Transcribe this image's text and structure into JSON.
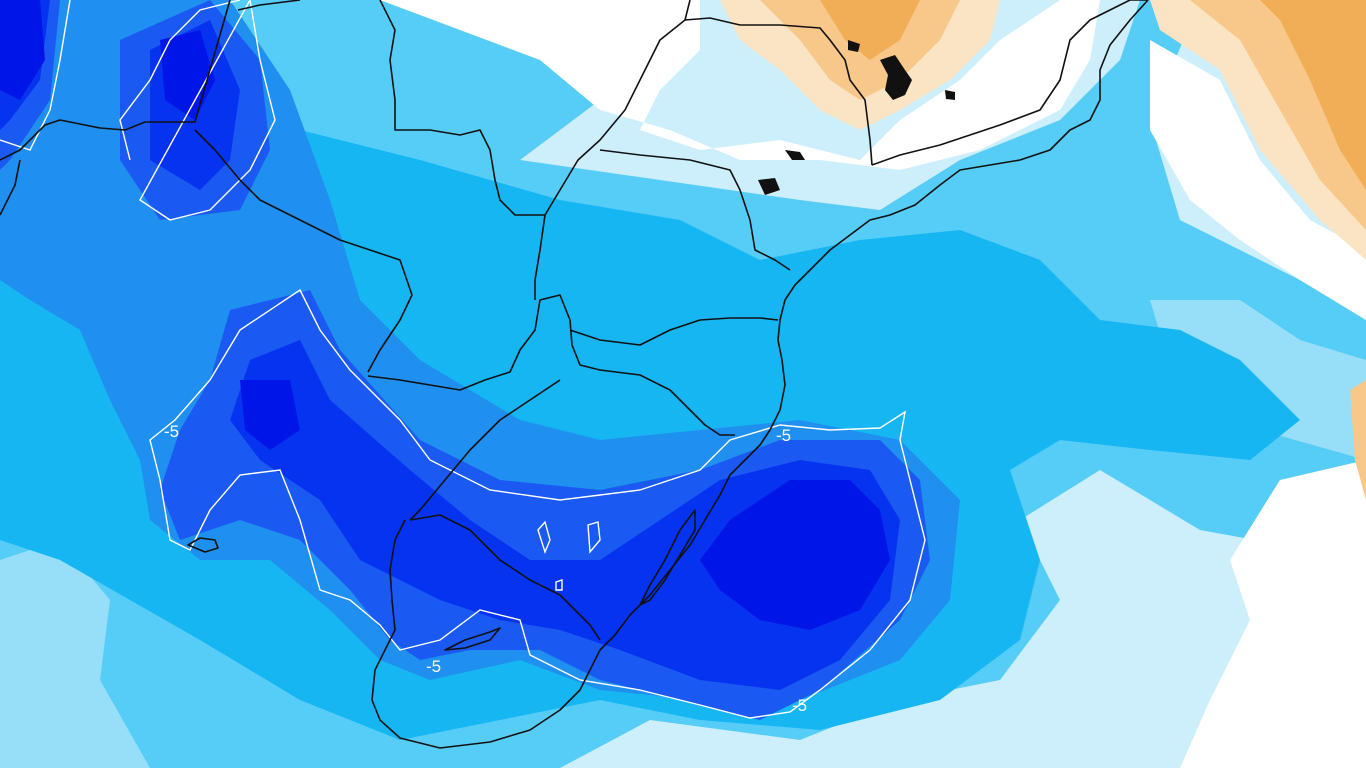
{
  "map": {
    "contour_labels": [
      {
        "id": "west",
        "text": "-5"
      },
      {
        "id": "southwest",
        "text": "-5"
      },
      {
        "id": "coast",
        "text": "-5"
      },
      {
        "id": "ocean",
        "text": "-5"
      }
    ],
    "colors": {
      "level_minus_8": "#0015e8",
      "level_minus_7": "#0633f0",
      "level_minus_6": "#1a5af3",
      "level_minus_5": "#1f8ff0",
      "level_minus_4": "#16b6f3",
      "level_minus_3": "#56cdf6",
      "level_minus_2": "#97def8",
      "level_minus_1": "#cdeefb",
      "level_zero": "#ffffff",
      "level_plus_1": "#fbe4c4",
      "level_plus_2": "#f8c78a",
      "level_plus_3": "#f2ad57",
      "contour_line": "#ffffff",
      "borders": "#111111"
    }
  }
}
